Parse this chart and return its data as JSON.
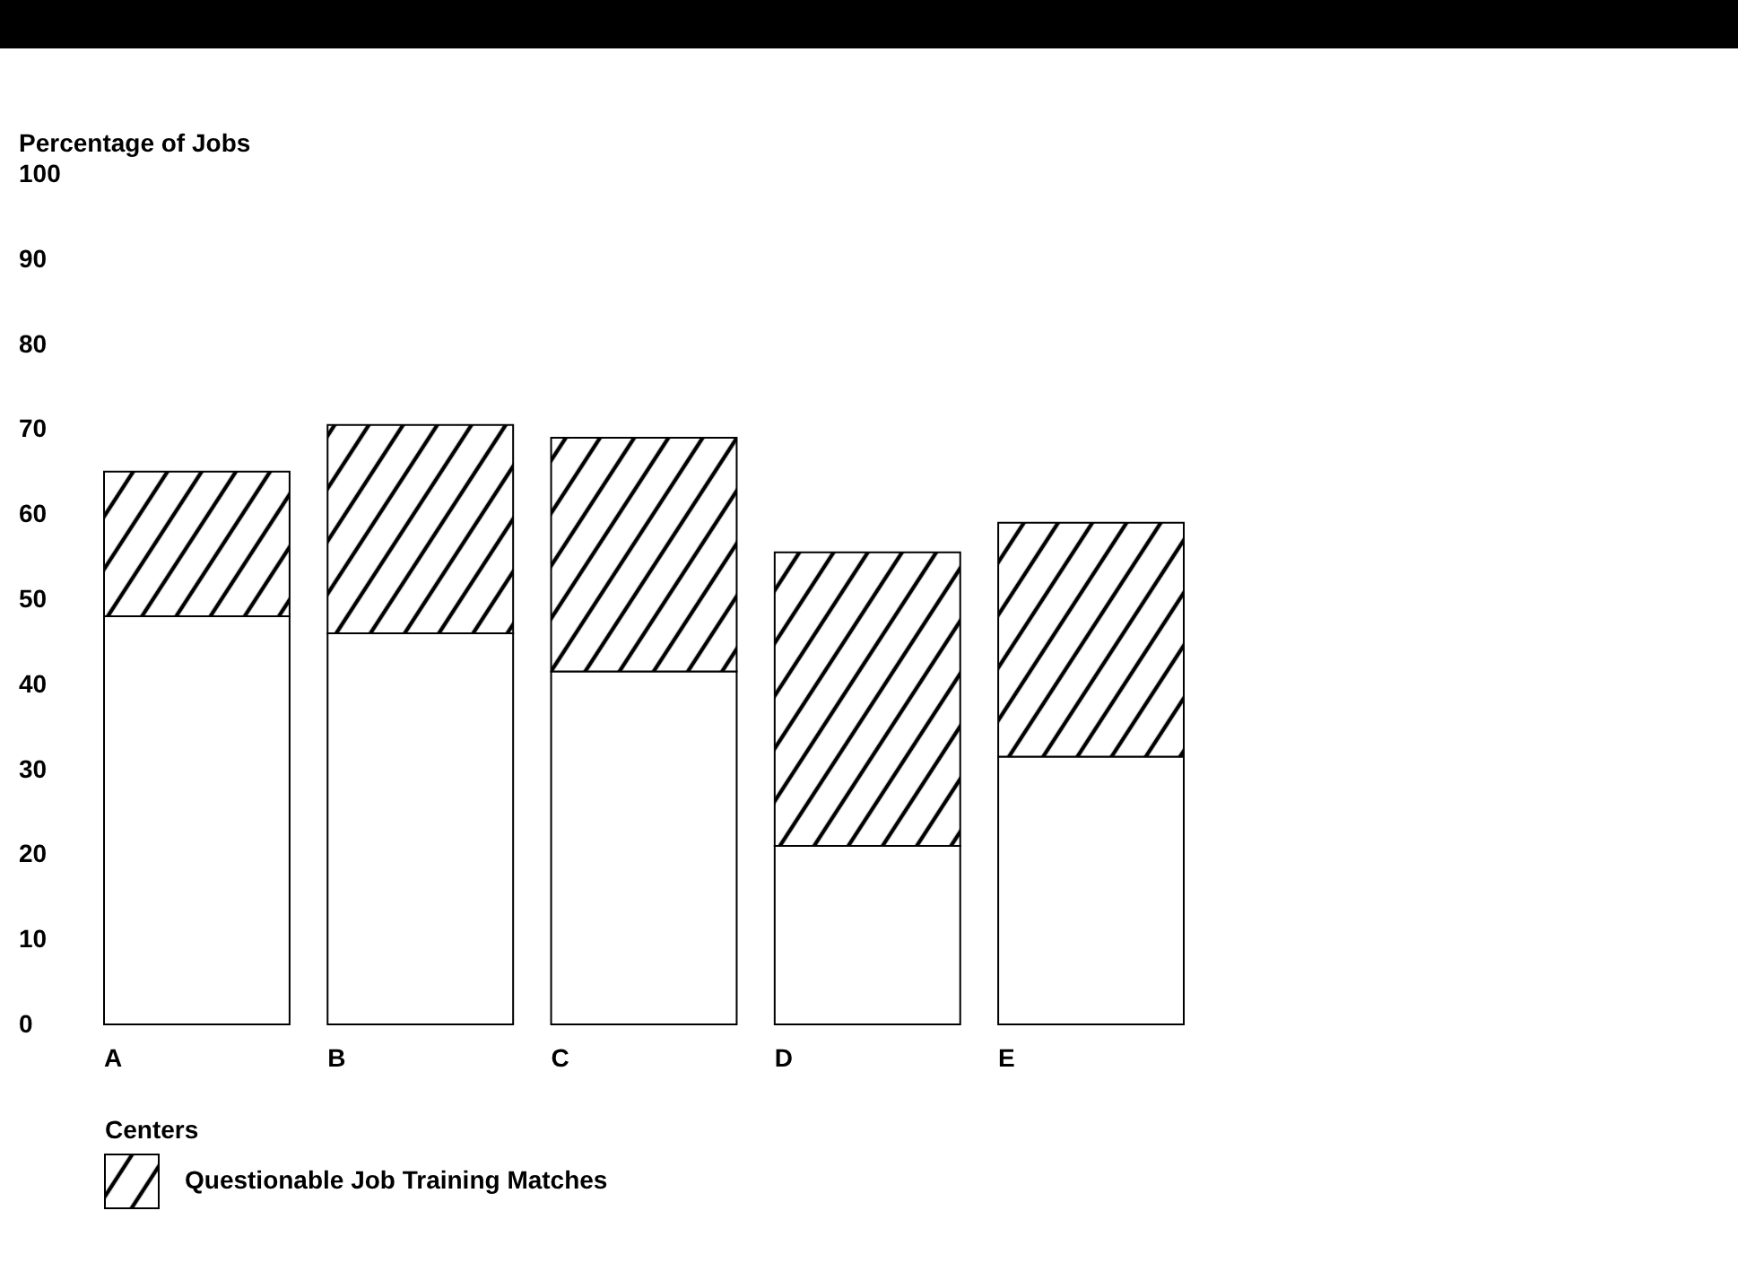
{
  "chart_data": {
    "type": "bar",
    "xlabel": "Centers",
    "ylabel": "Percentage of Jobs",
    "categories": [
      "A",
      "B",
      "C",
      "D",
      "E"
    ],
    "stacked": true,
    "series": [
      {
        "color": "#ffffff",
        "values": [
          48,
          46,
          41.5,
          21,
          31.5
        ]
      },
      {
        "name": "Questionable Job Training Matches",
        "color": "#000000",
        "values": [
          17,
          24.5,
          27.5,
          34.5,
          27.5
        ]
      }
    ],
    "ylim": [
      0,
      100
    ],
    "yticks": [
      0,
      10,
      20,
      30,
      40,
      50,
      60,
      70,
      80,
      90,
      100
    ],
    "grid": false,
    "legend": "bottom left"
  }
}
